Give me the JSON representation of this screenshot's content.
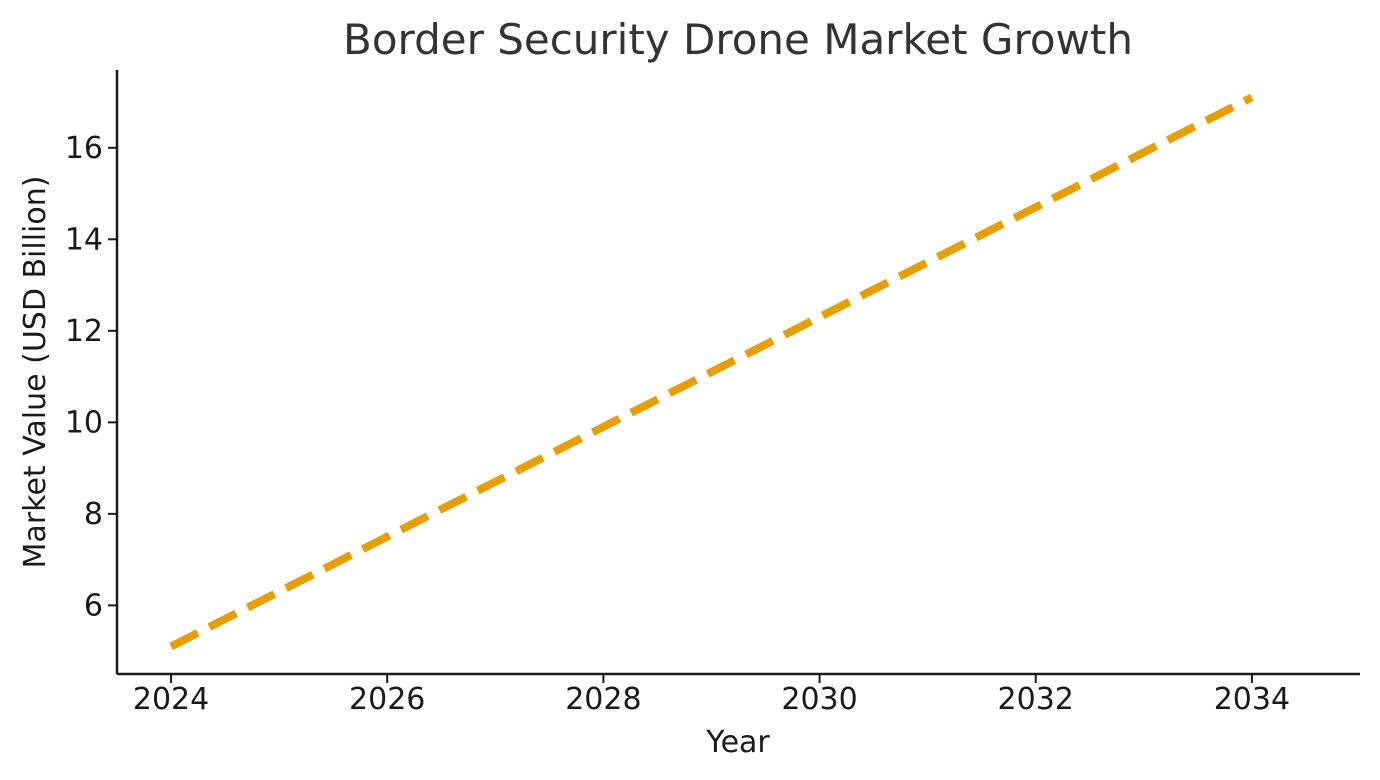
{
  "chart_data": {
    "type": "line",
    "title": "Border Security Drone Market Growth",
    "xlabel": "Year",
    "ylabel": "Market Value (USD Billion)",
    "x": [
      2024,
      2025,
      2026,
      2027,
      2028,
      2029,
      2030,
      2031,
      2032,
      2033,
      2034
    ],
    "series": [
      {
        "values": [
          5.1,
          6.3,
          7.5,
          8.7,
          9.9,
          11.1,
          12.3,
          13.5,
          14.7,
          15.9,
          17.1
        ],
        "color": "#E69F00",
        "line_style": "dashed"
      }
    ],
    "xlim": [
      2023.5,
      2035.0
    ],
    "ylim": [
      4.5,
      17.7
    ],
    "xticks": [
      2024,
      2026,
      2028,
      2030,
      2032,
      2034
    ],
    "yticks": [
      6,
      8,
      10,
      12,
      14,
      16
    ],
    "grid": false,
    "legend": "none"
  }
}
